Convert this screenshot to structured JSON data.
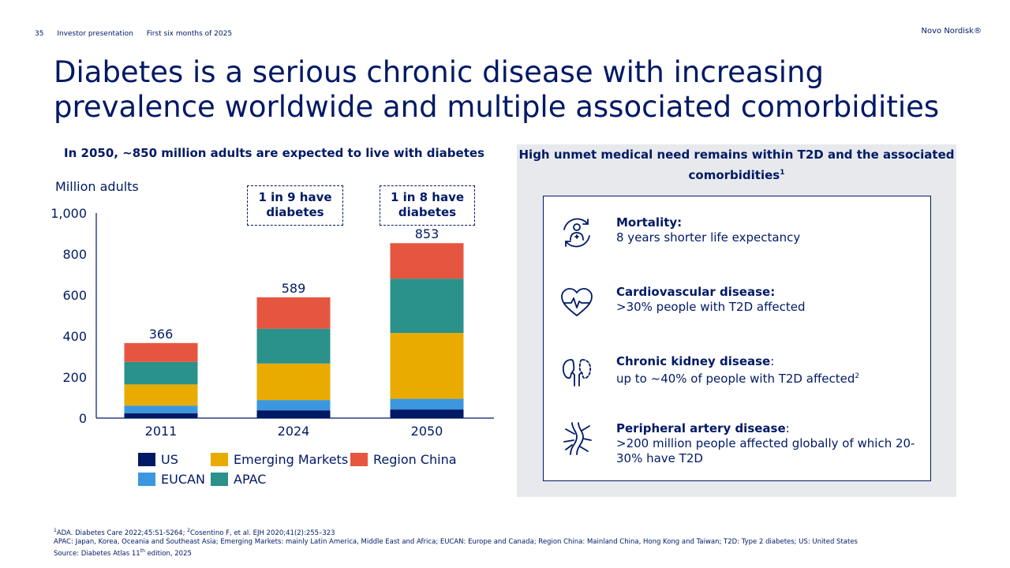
{
  "header": {
    "page_number": "35",
    "presentation": "Investor presentation",
    "period": "First six months of 2025",
    "brand": "Novo Nordisk®"
  },
  "title": "Diabetes is a serious chronic disease with increasing prevalence worldwide and multiple associated comorbidities",
  "left_heading": "In 2050, ~850 million adults are expected to live with diabetes",
  "callouts": {
    "c2024_line1": "1 in 9 have",
    "c2024_line2": "diabetes",
    "c2050_line1": "1 in 8 have",
    "c2050_line2": "diabetes"
  },
  "chart_data": {
    "type": "bar",
    "stacked": true,
    "ylabel": "Million adults",
    "ylim": [
      0,
      1000
    ],
    "yticks": [
      0,
      200,
      400,
      600,
      800,
      1000
    ],
    "ytick_labels": [
      "0",
      "200",
      "400",
      "600",
      "800",
      "1,000"
    ],
    "categories": [
      "2011",
      "2024",
      "2050"
    ],
    "totals": [
      366,
      589,
      853
    ],
    "total_labels": [
      "366",
      "589",
      "853"
    ],
    "series": [
      {
        "name": "US",
        "color": "#001965",
        "values": [
          24,
          38,
          42
        ]
      },
      {
        "name": "EUCAN",
        "color": "#3b97de",
        "values": [
          37,
          50,
          52
        ]
      },
      {
        "name": "Emerging Markets",
        "color": "#eaab00",
        "values": [
          103,
          178,
          321
        ]
      },
      {
        "name": "APAC",
        "color": "#2a918b",
        "values": [
          110,
          170,
          265
        ]
      },
      {
        "name": "Region China",
        "color": "#e6553f",
        "values": [
          92,
          153,
          173
        ]
      }
    ]
  },
  "legend": {
    "us": "US",
    "eucan": "EUCAN",
    "em": "Emerging Markets",
    "apac": "APAC",
    "china": "Region China"
  },
  "panel": {
    "heading_line1": "High unmet medical need remains within T2D and the associated",
    "heading_line2": "comorbidities",
    "heading_sup": "1",
    "items": [
      {
        "title": "Mortality:",
        "text": "8 years shorter life expectancy",
        "icon": "mortality-icon"
      },
      {
        "title": "Cardiovascular disease:",
        "text": ">30% people with T2D affected",
        "icon": "heart-icon"
      },
      {
        "title": "Chronic kidney disease",
        "title_suffix": ":",
        "text": "up to ~40% of people with T2D affected",
        "sup": "2",
        "icon": "kidney-icon"
      },
      {
        "title": "Peripheral artery disease",
        "title_suffix": ":",
        "text": ">200 million people affected globally of which 20-30% have T2D",
        "icon": "artery-icon"
      }
    ]
  },
  "footnotes": {
    "sup1": "1",
    "line1_a": "ADA. Diabetes Care 2022;45:S1-S264; ",
    "sup2": "2",
    "line1_b": "Cosentino F, et al. EJH 2020;41(2):255–323",
    "line2": "APAC: Japan, Korea, Oceania and Southeast Asia; Emerging Markets: mainly Latin America, Middle East and Africa; EUCAN: Europe and Canada; Region China: Mainland China, Hong Kong and Taiwan; T2D: Type 2 diabetes; US: United States",
    "line3_a": "Source: Diabetes Atlas 11",
    "line3_sup": "th",
    "line3_b": " edition, 2025"
  },
  "colors": {
    "navy": "#001965",
    "panel_bg": "#e7e9ec"
  }
}
